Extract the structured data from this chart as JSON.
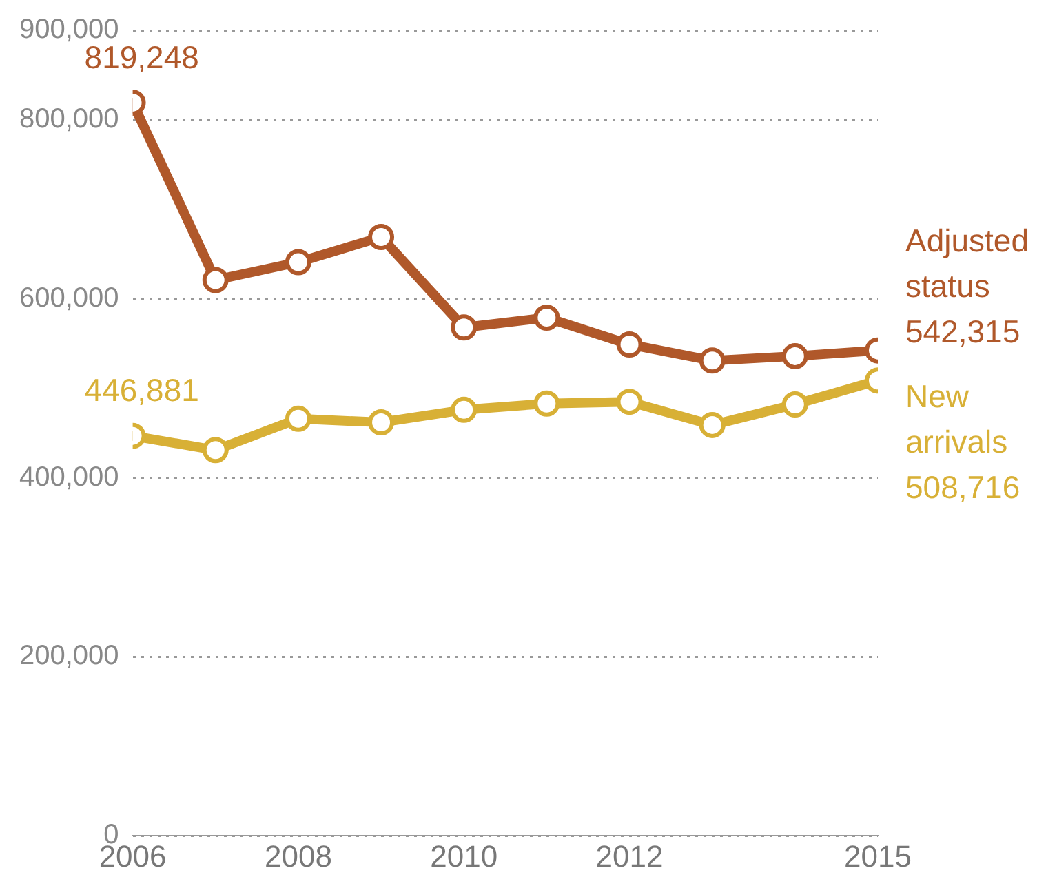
{
  "chart_data": {
    "type": "line",
    "x": [
      2006,
      2007,
      2008,
      2009,
      2010,
      2011,
      2012,
      2013,
      2014,
      2015
    ],
    "series": [
      {
        "name": "Adjusted status",
        "color": "#b0582a",
        "values": [
          819248,
          621000,
          641000,
          669000,
          568000,
          579000,
          549000,
          531000,
          536000,
          542315
        ],
        "value_labels": [
          "819,248",
          null,
          null,
          null,
          null,
          null,
          null,
          null,
          null,
          "542,315"
        ]
      },
      {
        "name": "New arrivals",
        "color": "#d8b036",
        "values": [
          446881,
          431000,
          466000,
          462000,
          476000,
          483000,
          485000,
          459000,
          482000,
          508716
        ],
        "value_labels": [
          "446,881",
          null,
          null,
          null,
          null,
          null,
          null,
          null,
          null,
          "508,716"
        ]
      }
    ],
    "xlim": [
      2006,
      2015
    ],
    "xticks": [
      2006,
      2008,
      2010,
      2012,
      2015
    ],
    "ylim": [
      0,
      900000
    ],
    "yticks": [
      0,
      {
        "value": 200000,
        "label": "200,000"
      },
      {
        "value": 400000,
        "label": "400,000"
      },
      {
        "value": 600000,
        "label": "600,000"
      },
      {
        "value": 800000,
        "label": "800,000"
      },
      {
        "value": 900000,
        "label": "900,000"
      }
    ],
    "grid": "y",
    "legend": false,
    "marker": "circle",
    "line_style": "solid"
  }
}
